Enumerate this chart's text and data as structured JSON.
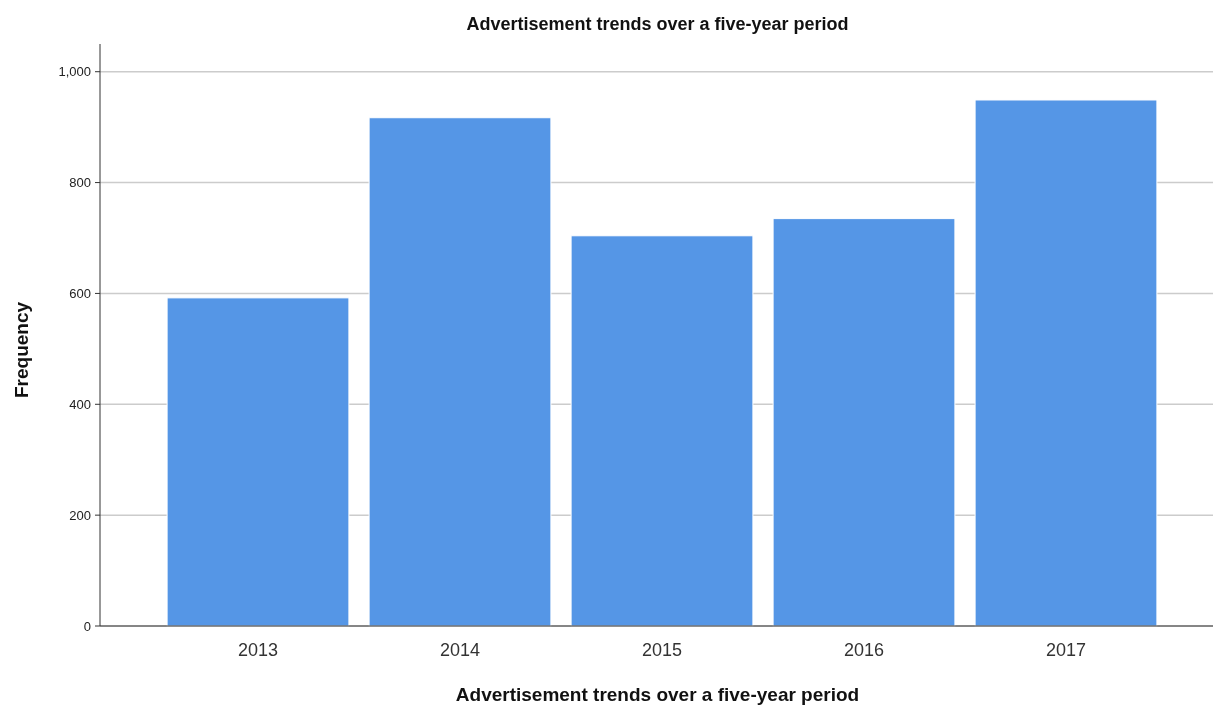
{
  "chart_data": {
    "type": "bar",
    "title": "Advertisement trends over a five-year period",
    "xlabel": "Advertisement trends over a five-year period",
    "ylabel": "Frequency",
    "categories": [
      "2013",
      "2014",
      "2015",
      "2016",
      "2017"
    ],
    "values": [
      592,
      917,
      704,
      735,
      949
    ],
    "color": "#5596e6",
    "ylim": [
      0,
      1050
    ],
    "yticks": [
      0,
      200,
      400,
      600,
      800,
      {
        "value": 1000,
        "label": "1,000"
      }
    ],
    "grid": "y"
  }
}
